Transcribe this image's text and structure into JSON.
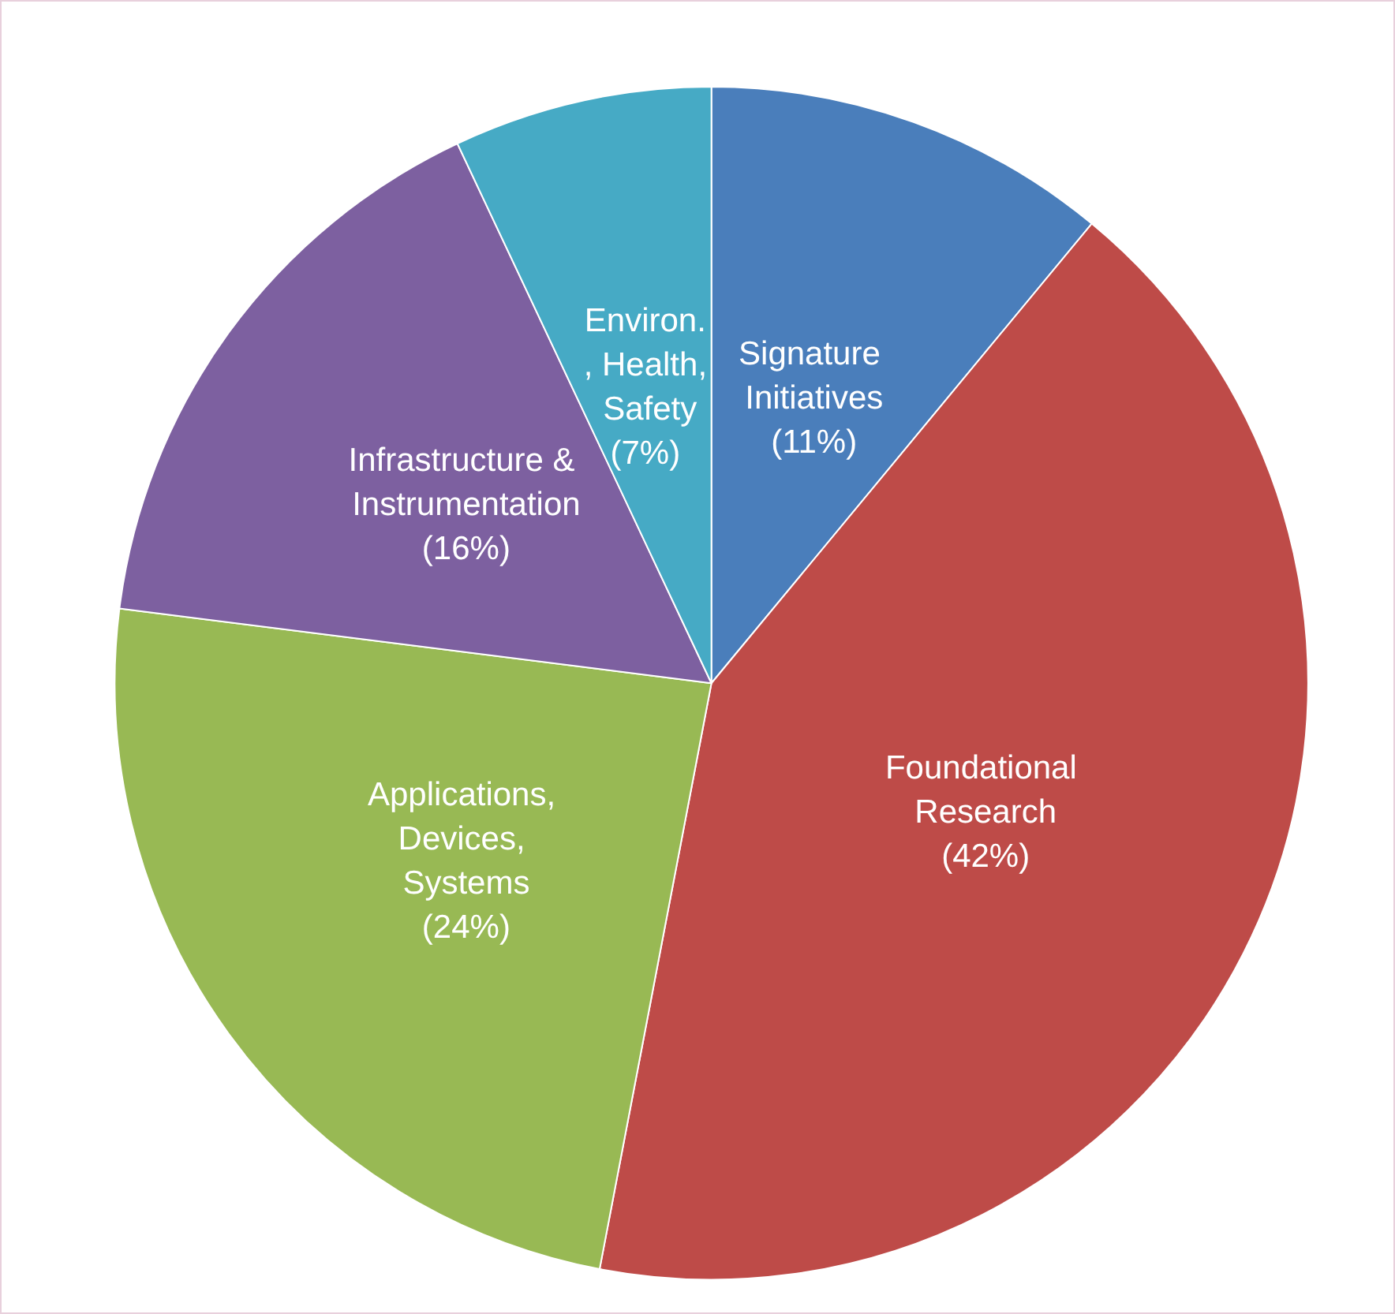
{
  "chart_data": {
    "type": "pie",
    "categories": [
      "Signature Initiatives",
      "Foundational Research",
      "Applications, Devices, Systems",
      "Infrastructure & Instrumentation",
      "Environ., Health, Safety"
    ],
    "values": [
      11,
      42,
      24,
      16,
      7
    ],
    "value_labels": [
      "(11%)",
      "(42%)",
      "(24%)",
      "(16%)",
      "(7%)"
    ],
    "colors": [
      "#4a7ebb",
      "#be4b48",
      "#98b954",
      "#7d60a0",
      "#46aac5"
    ],
    "legend": false
  }
}
